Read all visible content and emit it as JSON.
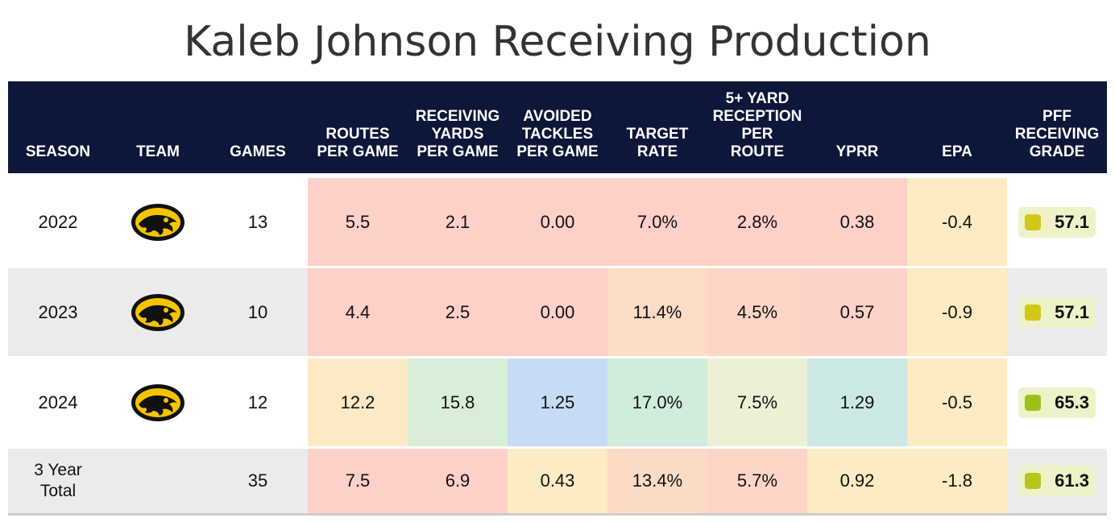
{
  "title": "Kaleb Johnson Receiving Production",
  "headers": {
    "season": "SEASON",
    "team": "TEAM",
    "games": "GAMES",
    "routes": "ROUTES PER GAME",
    "receiving_yards": "RECEIVING YARDS PER GAME",
    "avoided_tackles": "AVOIDED TACKLES PER GAME",
    "target_rate": "TARGET RATE",
    "five_plus": "5+ YARD RECEPTION PER ROUTE",
    "yprr": "YPRR",
    "epa": "EPA",
    "grade": "PFF RECEIVING GRADE"
  },
  "rows": [
    {
      "season": "2022",
      "team_logo": "iowa-hawkeyes-logo",
      "games": "13",
      "routes": "5.5",
      "receiving_yards": "2.1",
      "avoided_tackles": "0.00",
      "target_rate": "7.0%",
      "five_plus": "2.8%",
      "yprr": "0.38",
      "epa": "-0.4",
      "grade": "57.1",
      "colors": {
        "routes": "#fdd0c8",
        "receiving_yards": "#fdd0c8",
        "avoided_tackles": "#fdd0c8",
        "target_rate": "#fdd0c8",
        "five_plus": "#fdd0c8",
        "yprr": "#fdd0c8",
        "epa": "#fdebc3",
        "grade_square": "#d5c71a",
        "row_bg": "#ffffff"
      }
    },
    {
      "season": "2023",
      "team_logo": "iowa-hawkeyes-logo",
      "games": "10",
      "routes": "4.4",
      "receiving_yards": "2.5",
      "avoided_tackles": "0.00",
      "target_rate": "11.4%",
      "five_plus": "4.5%",
      "yprr": "0.57",
      "epa": "-0.9",
      "grade": "57.1",
      "colors": {
        "routes": "#fdd0c8",
        "receiving_yards": "#fdd0c8",
        "avoided_tackles": "#fdd0c8",
        "target_rate": "#fcdcc5",
        "five_plus": "#fdd5c7",
        "yprr": "#fdd2c8",
        "epa": "#fdebc3",
        "grade_square": "#d5c71a",
        "row_bg": "#ebebeb"
      }
    },
    {
      "season": "2024",
      "team_logo": "iowa-hawkeyes-logo",
      "games": "12",
      "routes": "12.2",
      "receiving_yards": "15.8",
      "avoided_tackles": "1.25",
      "target_rate": "17.0%",
      "five_plus": "7.5%",
      "yprr": "1.29",
      "epa": "-0.5",
      "grade": "65.3",
      "colors": {
        "routes": "#fdeac5",
        "receiving_yards": "#d9eed8",
        "avoided_tackles": "#c8dbf6",
        "target_rate": "#d2ecdc",
        "five_plus": "#ecf1d6",
        "yprr": "#cce8e5",
        "epa": "#fdebc3",
        "grade_square": "#9bc21a",
        "row_bg": "#ffffff"
      }
    },
    {
      "season": "3 Year Total",
      "team_logo": "",
      "games": "35",
      "routes": "7.5",
      "receiving_yards": "6.9",
      "avoided_tackles": "0.43",
      "target_rate": "13.4%",
      "five_plus": "5.7%",
      "yprr": "0.92",
      "epa": "-1.8",
      "grade": "61.3",
      "colors": {
        "routes": "#fdd0c8",
        "receiving_yards": "#fdd0c8",
        "avoided_tackles": "#fdebc3",
        "target_rate": "#fcdbc6",
        "five_plus": "#fdd5c7",
        "yprr": "#fdebc3",
        "epa": "#fdebc3",
        "grade_square": "#b8c51a",
        "row_bg": "#ebebeb"
      }
    }
  ]
}
